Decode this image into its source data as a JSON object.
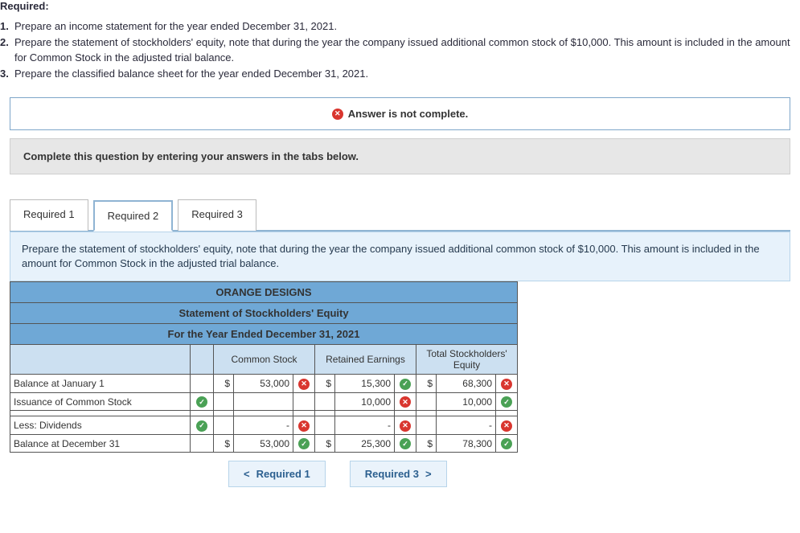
{
  "header_label": "Required:",
  "instructions": [
    {
      "num": "1.",
      "text": "Prepare an income statement for the year ended December 31, 2021."
    },
    {
      "num": "2.",
      "text": "Prepare the statement of stockholders' equity, note that during the year the company issued additional common stock of $10,000. This amount is included in the amount for Common Stock in the adjusted trial balance."
    },
    {
      "num": "3.",
      "text": "Prepare the classified balance sheet for the year ended December 31, 2021."
    }
  ],
  "status_text": "Answer is not complete.",
  "instruct_bar": "Complete this question by entering your answers in the tabs below.",
  "tabs": {
    "t1": "Required 1",
    "t2": "Required 2",
    "t3": "Required 3"
  },
  "tab_desc": "Prepare the statement of stockholders' equity, note that during the year the company issued additional common stock of $10,000. This amount is included in the amount for Common Stock in the adjusted trial balance.",
  "table": {
    "title1": "ORANGE DESIGNS",
    "title2": "Statement of Stockholders' Equity",
    "title3": "For the Year Ended December 31, 2021",
    "col_common": "Common Stock",
    "col_retained": "Retained Earnings",
    "col_total": "Total Stockholders' Equity",
    "rows": {
      "r1": {
        "label": "Balance at January 1",
        "cs_d": "$",
        "cs_v": "53,000",
        "cs_m": "x",
        "re_d": "$",
        "re_v": "15,300",
        "re_m": "c",
        "tot_d": "$",
        "tot_v": "68,300",
        "tot_m": "x"
      },
      "r2": {
        "label": "Issuance of Common Stock",
        "chk": "c",
        "re_v": "10,000",
        "re_m": "x",
        "tot_v": "10,000",
        "tot_m": "c"
      },
      "r3": {
        "label": ""
      },
      "r4": {
        "label": "Less: Dividends",
        "chk": "c",
        "cs_v": "-",
        "cs_m": "x",
        "re_v": "-",
        "re_m": "x",
        "tot_v": "-",
        "tot_m": "x"
      },
      "r5": {
        "label": "Balance at December 31",
        "cs_d": "$",
        "cs_v": "53,000",
        "cs_m": "c",
        "re_d": "$",
        "re_v": "25,300",
        "re_m": "c",
        "tot_d": "$",
        "tot_v": "78,300",
        "tot_m": "c"
      }
    }
  },
  "nav": {
    "prev": "Required 1",
    "next": "Required 3"
  },
  "colors": {
    "title_bg": "#6fa8d6",
    "colhead_bg": "#cce0f1",
    "desc_bg": "#e7f2fb",
    "instruct_bg": "#e7e7e7",
    "check_bg": "#4aa155",
    "cross_bg": "#d9362f"
  }
}
